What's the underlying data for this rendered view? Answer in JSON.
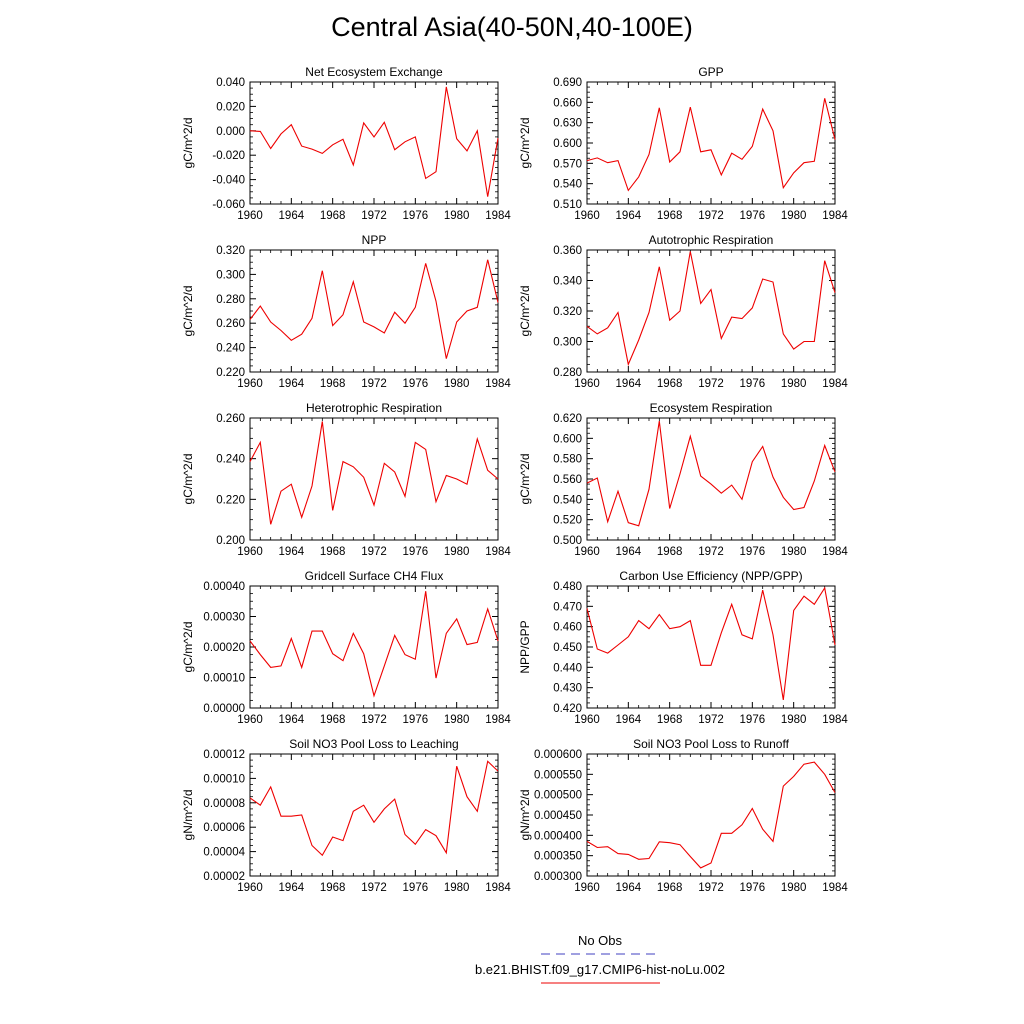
{
  "title": "Central Asia(40-50N,40-100E)",
  "legend": [
    {
      "label": "No Obs",
      "color": "#4040c0",
      "style": "dashed"
    },
    {
      "label": "b.e21.BHIST.f09_g17.CMIP6-hist-noLu.002",
      "color": "#ee0000",
      "style": "solid"
    }
  ],
  "chart_data": [
    {
      "type": "line",
      "title": "Net Ecosystem Exchange",
      "ylabel": "gC/m^2/d",
      "xlim": [
        1960,
        1984
      ],
      "ylim": [
        -0.06,
        0.04
      ],
      "yticks": [
        "-0.060",
        "-0.040",
        "-0.020",
        "0.000",
        "0.020",
        "0.040"
      ],
      "xticks": [
        "1960",
        "1964",
        "1968",
        "1972",
        "1976",
        "1980",
        "1984"
      ],
      "series": [
        {
          "color": "#ee0000",
          "x": [
            1960,
            1961,
            1962,
            1963,
            1964,
            1965,
            1966,
            1967,
            1968,
            1969,
            1970,
            1971,
            1972,
            1973,
            1974,
            1975,
            1976,
            1977,
            1978,
            1979,
            1980,
            1981,
            1982,
            1983,
            1984
          ],
          "values": [
            0.0,
            -0.0005,
            -0.0145,
            -0.0025,
            0.005,
            -0.0125,
            -0.015,
            -0.0185,
            -0.0115,
            -0.007,
            -0.028,
            0.0065,
            -0.005,
            0.007,
            -0.0155,
            -0.009,
            -0.005,
            -0.039,
            -0.0335,
            0.036,
            -0.0065,
            -0.0165,
            0.0,
            -0.054,
            -0.006
          ]
        }
      ]
    },
    {
      "type": "line",
      "title": "GPP",
      "ylabel": "gC/m^2/d",
      "xlim": [
        1960,
        1984
      ],
      "ylim": [
        0.51,
        0.69
      ],
      "yticks": [
        "0.510",
        "0.540",
        "0.570",
        "0.600",
        "0.630",
        "0.660",
        "0.690"
      ],
      "xticks": [
        "1960",
        "1964",
        "1968",
        "1972",
        "1976",
        "1980",
        "1984"
      ],
      "series": [
        {
          "color": "#ee0000",
          "x": [
            1960,
            1961,
            1962,
            1963,
            1964,
            1965,
            1966,
            1967,
            1968,
            1969,
            1970,
            1971,
            1972,
            1973,
            1974,
            1975,
            1976,
            1977,
            1978,
            1979,
            1980,
            1981,
            1982,
            1983,
            1984
          ],
          "values": [
            0.574,
            0.578,
            0.571,
            0.574,
            0.53,
            0.55,
            0.583,
            0.652,
            0.572,
            0.587,
            0.653,
            0.587,
            0.59,
            0.553,
            0.585,
            0.576,
            0.595,
            0.65,
            0.618,
            0.534,
            0.556,
            0.571,
            0.573,
            0.666,
            0.605
          ]
        }
      ]
    },
    {
      "type": "line",
      "title": "NPP",
      "ylabel": "gC/m^2/d",
      "xlim": [
        1960,
        1984
      ],
      "ylim": [
        0.22,
        0.32
      ],
      "yticks": [
        "0.220",
        "0.240",
        "0.260",
        "0.280",
        "0.300",
        "0.320"
      ],
      "xticks": [
        "1960",
        "1964",
        "1968",
        "1972",
        "1976",
        "1980",
        "1984"
      ],
      "series": [
        {
          "color": "#ee0000",
          "x": [
            1960,
            1961,
            1962,
            1963,
            1964,
            1965,
            1966,
            1967,
            1968,
            1969,
            1970,
            1971,
            1972,
            1973,
            1974,
            1975,
            1976,
            1977,
            1978,
            1979,
            1980,
            1981,
            1982,
            1983,
            1984
          ],
          "values": [
            0.263,
            0.274,
            0.261,
            0.254,
            0.246,
            0.251,
            0.264,
            0.303,
            0.258,
            0.267,
            0.294,
            0.261,
            0.257,
            0.252,
            0.269,
            0.26,
            0.273,
            0.309,
            0.278,
            0.231,
            0.261,
            0.27,
            0.273,
            0.312,
            0.277
          ]
        }
      ]
    },
    {
      "type": "line",
      "title": "Autotrophic Respiration",
      "ylabel": "gC/m^2/d",
      "xlim": [
        1960,
        1984
      ],
      "ylim": [
        0.28,
        0.36
      ],
      "yticks": [
        "0.280",
        "0.300",
        "0.320",
        "0.340",
        "0.360"
      ],
      "xticks": [
        "1960",
        "1964",
        "1968",
        "1972",
        "1976",
        "1980",
        "1984"
      ],
      "series": [
        {
          "color": "#ee0000",
          "x": [
            1960,
            1961,
            1962,
            1963,
            1964,
            1965,
            1966,
            1967,
            1968,
            1969,
            1970,
            1971,
            1972,
            1973,
            1974,
            1975,
            1976,
            1977,
            1978,
            1979,
            1980,
            1981,
            1982,
            1983,
            1984
          ],
          "values": [
            0.31,
            0.305,
            0.309,
            0.319,
            0.285,
            0.301,
            0.319,
            0.349,
            0.314,
            0.32,
            0.359,
            0.325,
            0.334,
            0.302,
            0.316,
            0.315,
            0.322,
            0.341,
            0.339,
            0.305,
            0.295,
            0.3,
            0.3,
            0.353,
            0.332
          ]
        }
      ]
    },
    {
      "type": "line",
      "title": "Heterotrophic Respiration",
      "ylabel": "gC/m^2/d",
      "xlim": [
        1960,
        1984
      ],
      "ylim": [
        0.2,
        0.27
      ],
      "yticks": [
        "0.200",
        "0.220",
        "0.240",
        "0.260"
      ],
      "xticks": [
        "1960",
        "1964",
        "1968",
        "1972",
        "1976",
        "1980",
        "1984"
      ],
      "series": [
        {
          "color": "#ee0000",
          "x": [
            1960,
            1961,
            1962,
            1963,
            1964,
            1965,
            1966,
            1967,
            1968,
            1969,
            1970,
            1971,
            1972,
            1973,
            1974,
            1975,
            1976,
            1977,
            1978,
            1979,
            1980,
            1981,
            1982,
            1983,
            1984
          ],
          "values": [
            0.245,
            0.256,
            0.209,
            0.228,
            0.232,
            0.213,
            0.231,
            0.268,
            0.217,
            0.245,
            0.242,
            0.236,
            0.22,
            0.244,
            0.239,
            0.225,
            0.256,
            0.252,
            0.222,
            0.237,
            0.235,
            0.232,
            0.258,
            0.24,
            0.235
          ]
        }
      ]
    },
    {
      "type": "line",
      "title": "Ecosystem Respiration",
      "ylabel": "gC/m^2/d",
      "xlim": [
        1960,
        1984
      ],
      "ylim": [
        0.5,
        0.62
      ],
      "yticks": [
        "0.500",
        "0.520",
        "0.540",
        "0.560",
        "0.580",
        "0.600",
        "0.620"
      ],
      "xticks": [
        "1960",
        "1964",
        "1968",
        "1972",
        "1976",
        "1980",
        "1984"
      ],
      "series": [
        {
          "color": "#ee0000",
          "x": [
            1960,
            1961,
            1962,
            1963,
            1964,
            1965,
            1966,
            1967,
            1968,
            1969,
            1970,
            1971,
            1972,
            1973,
            1974,
            1975,
            1976,
            1977,
            1978,
            1979,
            1980,
            1981,
            1982,
            1983,
            1984
          ],
          "values": [
            0.556,
            0.561,
            0.518,
            0.548,
            0.517,
            0.514,
            0.55,
            0.617,
            0.531,
            0.565,
            0.602,
            0.563,
            0.555,
            0.546,
            0.554,
            0.54,
            0.577,
            0.592,
            0.562,
            0.542,
            0.53,
            0.532,
            0.558,
            0.593,
            0.567
          ]
        }
      ]
    },
    {
      "type": "line",
      "title": "Gridcell Surface CH4 Flux",
      "ylabel": "gC/m^2/d",
      "xlim": [
        1960,
        1984
      ],
      "ylim": [
        0.0,
        0.0004
      ],
      "yticks": [
        "0.00000",
        "0.00010",
        "0.00020",
        "0.00030",
        "0.00040"
      ],
      "xticks": [
        "1960",
        "1964",
        "1968",
        "1972",
        "1976",
        "1980",
        "1984"
      ],
      "series": [
        {
          "color": "#ee0000",
          "x": [
            1960,
            1961,
            1962,
            1963,
            1964,
            1965,
            1966,
            1967,
            1968,
            1969,
            1970,
            1971,
            1972,
            1973,
            1974,
            1975,
            1976,
            1977,
            1978,
            1979,
            1980,
            1981,
            1982,
            1983,
            1984
          ],
          "values": [
            0.00022,
            0.000175,
            0.000133,
            0.000138,
            0.000228,
            0.000133,
            0.000252,
            0.000252,
            0.000178,
            0.000155,
            0.000245,
            0.000178,
            4e-05,
            0.000138,
            0.000238,
            0.000175,
            0.00016,
            0.000383,
            9.8e-05,
            0.000245,
            0.000292,
            0.000208,
            0.000215,
            0.000325,
            0.00022
          ]
        }
      ]
    },
    {
      "type": "line",
      "title": "Carbon Use Efficiency (NPP/GPP)",
      "ylabel": "NPP/GPP",
      "xlim": [
        1960,
        1984
      ],
      "ylim": [
        0.42,
        0.48
      ],
      "yticks": [
        "0.420",
        "0.430",
        "0.440",
        "0.450",
        "0.460",
        "0.470",
        "0.480"
      ],
      "xticks": [
        "1960",
        "1964",
        "1968",
        "1972",
        "1976",
        "1980",
        "1984"
      ],
      "series": [
        {
          "color": "#ee0000",
          "x": [
            1960,
            1961,
            1962,
            1963,
            1964,
            1965,
            1966,
            1967,
            1968,
            1969,
            1970,
            1971,
            1972,
            1973,
            1974,
            1975,
            1976,
            1977,
            1978,
            1979,
            1980,
            1981,
            1982,
            1983,
            1984
          ],
          "values": [
            0.469,
            0.449,
            0.447,
            0.451,
            0.455,
            0.463,
            0.459,
            0.466,
            0.459,
            0.46,
            0.463,
            0.441,
            0.441,
            0.457,
            0.471,
            0.456,
            0.454,
            0.478,
            0.456,
            0.424,
            0.468,
            0.475,
            0.471,
            0.479,
            0.451
          ]
        }
      ]
    },
    {
      "type": "line",
      "title": "Soil NO3 Pool Loss to Leaching",
      "ylabel": "gN/m^2/d",
      "xlim": [
        1960,
        1984
      ],
      "ylim": [
        2e-05,
        0.00012
      ],
      "yticks": [
        "0.00002",
        "0.00004",
        "0.00006",
        "0.00008",
        "0.00010",
        "0.00012"
      ],
      "xticks": [
        "1960",
        "1964",
        "1968",
        "1972",
        "1976",
        "1980",
        "1984"
      ],
      "series": [
        {
          "color": "#ee0000",
          "x": [
            1960,
            1961,
            1962,
            1963,
            1964,
            1965,
            1966,
            1967,
            1968,
            1969,
            1970,
            1971,
            1972,
            1973,
            1974,
            1975,
            1976,
            1977,
            1978,
            1979,
            1980,
            1981,
            1982,
            1983,
            1984
          ],
          "values": [
            8.4e-05,
            7.8e-05,
            9.3e-05,
            6.9e-05,
            6.9e-05,
            7e-05,
            4.5e-05,
            3.7e-05,
            5.2e-05,
            4.9e-05,
            7.3e-05,
            7.8e-05,
            6.4e-05,
            7.5e-05,
            8.3e-05,
            5.4e-05,
            4.6e-05,
            5.8e-05,
            5.3e-05,
            3.9e-05,
            0.00011,
            8.5e-05,
            7.3e-05,
            0.000114,
            0.000106
          ]
        }
      ]
    },
    {
      "type": "line",
      "title": "Soil NO3 Pool Loss to Runoff",
      "ylabel": "gN/m^2/d",
      "xlim": [
        1960,
        1984
      ],
      "ylim": [
        0.0003,
        0.0006
      ],
      "yticks": [
        "0.000300",
        "0.000350",
        "0.000400",
        "0.000450",
        "0.000500",
        "0.000550",
        "0.000600"
      ],
      "xticks": [
        "1960",
        "1964",
        "1968",
        "1972",
        "1976",
        "1980",
        "1984"
      ],
      "series": [
        {
          "color": "#ee0000",
          "x": [
            1960,
            1961,
            1962,
            1963,
            1964,
            1965,
            1966,
            1967,
            1968,
            1969,
            1970,
            1971,
            1972,
            1973,
            1974,
            1975,
            1976,
            1977,
            1978,
            1979,
            1980,
            1981,
            1982,
            1983,
            1984
          ],
          "values": [
            0.000385,
            0.00037,
            0.000372,
            0.000355,
            0.000353,
            0.000341,
            0.000343,
            0.000384,
            0.000382,
            0.000377,
            0.000348,
            0.00032,
            0.000332,
            0.000405,
            0.000405,
            0.000426,
            0.000466,
            0.000415,
            0.000385,
            0.000521,
            0.000545,
            0.000575,
            0.00058,
            0.00055,
            0.000505
          ]
        }
      ]
    }
  ]
}
